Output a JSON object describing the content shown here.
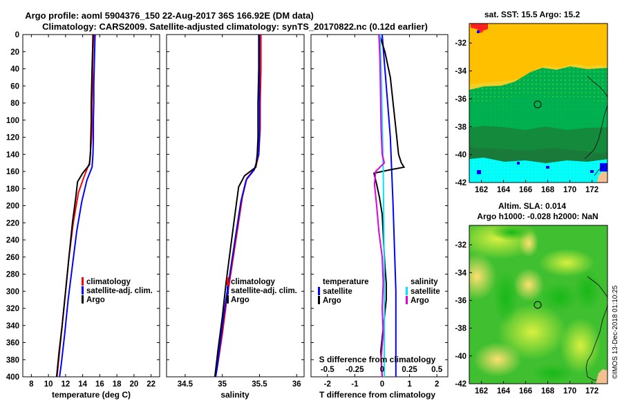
{
  "title": {
    "line1": "Argo profile: aoml 5904376_150 22-Aug-2017 36S 166.92E (DM data)",
    "line2": "Climatology: CARS2009. Satellite-adjusted climatology: synTS_20170822.nc (0.12d earlier)"
  },
  "colors": {
    "climatology": "#ff0000",
    "satellite": "#0000ff",
    "argo": "#000000",
    "salinity_satellite": "#00e5ff",
    "salinity_argo": "#e000e0"
  },
  "depth_axis": {
    "range": [
      0,
      400
    ],
    "ticks": [
      "0",
      "20",
      "40",
      "60",
      "80",
      "100",
      "120",
      "140",
      "160",
      "180",
      "200",
      "220",
      "240",
      "260",
      "280",
      "300",
      "320",
      "340",
      "360",
      "380",
      "400"
    ]
  },
  "chart_data": [
    {
      "type": "line",
      "id": "temperature",
      "xlabel": "temperature (deg C)",
      "ylabel": "",
      "xlim": [
        7,
        23
      ],
      "ylim": [
        400,
        0
      ],
      "x_ticks": [
        "8",
        "10",
        "12",
        "14",
        "16",
        "18",
        "20",
        "22"
      ],
      "x_tick_values": [
        8,
        10,
        12,
        14,
        16,
        18,
        20,
        22
      ],
      "legend": [
        "climatology",
        "satellite-adj. clim.",
        "Argo"
      ],
      "series": [
        {
          "name": "climatology",
          "color_key": "climatology",
          "points": [
            [
              15.3,
              0
            ],
            [
              15.2,
              20
            ],
            [
              15.15,
              40
            ],
            [
              15.15,
              60
            ],
            [
              15.1,
              80
            ],
            [
              15.1,
              100
            ],
            [
              15.05,
              120
            ],
            [
              14.8,
              150
            ],
            [
              14.2,
              165
            ],
            [
              13.5,
              185
            ],
            [
              12.9,
              220
            ],
            [
              12.4,
              260
            ],
            [
              12.0,
              300
            ],
            [
              11.6,
              340
            ],
            [
              11.3,
              370
            ],
            [
              11.0,
              400
            ]
          ]
        },
        {
          "name": "satellite-adj. clim.",
          "color_key": "satellite",
          "points": [
            [
              15.45,
              0
            ],
            [
              15.4,
              20
            ],
            [
              15.35,
              40
            ],
            [
              15.3,
              60
            ],
            [
              15.3,
              80
            ],
            [
              15.25,
              100
            ],
            [
              15.25,
              120
            ],
            [
              15.2,
              140
            ],
            [
              15.1,
              155
            ],
            [
              14.5,
              170
            ],
            [
              13.9,
              195
            ],
            [
              13.3,
              230
            ],
            [
              12.8,
              270
            ],
            [
              12.3,
              310
            ],
            [
              11.9,
              350
            ],
            [
              11.5,
              385
            ],
            [
              11.3,
              400
            ]
          ]
        },
        {
          "name": "Argo",
          "color_key": "argo",
          "points": [
            [
              15.2,
              0
            ],
            [
              15.15,
              20
            ],
            [
              15.1,
              40
            ],
            [
              15.05,
              60
            ],
            [
              15.0,
              80
            ],
            [
              15.0,
              100
            ],
            [
              14.95,
              120
            ],
            [
              14.9,
              140
            ],
            [
              14.8,
              152
            ],
            [
              14.0,
              162
            ],
            [
              13.4,
              172
            ],
            [
              13.2,
              190
            ],
            [
              12.8,
              220
            ],
            [
              12.4,
              260
            ],
            [
              12.0,
              300
            ],
            [
              11.6,
              340
            ],
            [
              11.25,
              370
            ],
            [
              10.95,
              400
            ]
          ]
        }
      ]
    },
    {
      "type": "line",
      "id": "salinity",
      "xlabel": "salinity",
      "xlim": [
        34.25,
        36.1
      ],
      "ylim": [
        400,
        0
      ],
      "x_ticks": [
        "34.5",
        "35",
        "35.5",
        "36"
      ],
      "x_tick_values": [
        34.5,
        35,
        35.5,
        36
      ],
      "legend": [
        "climatology",
        "satellite-adj. clim.",
        "Argo"
      ],
      "series": [
        {
          "name": "climatology",
          "color_key": "climatology",
          "points": [
            [
              35.52,
              0
            ],
            [
              35.52,
              40
            ],
            [
              35.51,
              80
            ],
            [
              35.51,
              110
            ],
            [
              35.49,
              140
            ],
            [
              35.45,
              155
            ],
            [
              35.33,
              168
            ],
            [
              35.27,
              190
            ],
            [
              35.2,
              230
            ],
            [
              35.13,
              270
            ],
            [
              35.06,
              310
            ],
            [
              35.0,
              350
            ],
            [
              34.94,
              385
            ],
            [
              34.91,
              400
            ]
          ]
        },
        {
          "name": "satellite-adj. clim.",
          "color_key": "satellite",
          "points": [
            [
              35.5,
              0
            ],
            [
              35.5,
              40
            ],
            [
              35.5,
              80
            ],
            [
              35.5,
              110
            ],
            [
              35.49,
              140
            ],
            [
              35.43,
              158
            ],
            [
              35.32,
              170
            ],
            [
              35.25,
              195
            ],
            [
              35.18,
              235
            ],
            [
              35.11,
              275
            ],
            [
              35.04,
              315
            ],
            [
              34.98,
              355
            ],
            [
              34.93,
              390
            ],
            [
              34.91,
              400
            ]
          ]
        },
        {
          "name": "Argo",
          "color_key": "argo",
          "points": [
            [
              35.49,
              0
            ],
            [
              35.49,
              40
            ],
            [
              35.48,
              80
            ],
            [
              35.48,
              120
            ],
            [
              35.47,
              140
            ],
            [
              35.45,
              155
            ],
            [
              35.3,
              165
            ],
            [
              35.22,
              178
            ],
            [
              35.17,
              210
            ],
            [
              35.11,
              250
            ],
            [
              35.05,
              290
            ],
            [
              35.0,
              330
            ],
            [
              34.94,
              370
            ],
            [
              34.9,
              400
            ]
          ]
        }
      ]
    },
    {
      "type": "line",
      "id": "difference",
      "xlabel": "T difference from climatology",
      "secondary_xlabel": "S difference from climatology",
      "xlim": [
        -2.6,
        2.4
      ],
      "ylim": [
        400,
        0
      ],
      "x_ticks": [
        "-2",
        "-1",
        "0",
        "1",
        "2"
      ],
      "x_tick_values": [
        -2,
        -1,
        0,
        1,
        2
      ],
      "s_ticks": [
        "-0.5",
        "-0.25",
        "0",
        "0.25",
        "0.5"
      ],
      "s_tick_values": [
        -0.5,
        -0.25,
        0,
        0.25,
        0.5
      ],
      "s_scale": 4,
      "legend_temperature": {
        "header": "temperature",
        "items": [
          "satellite",
          "Argo"
        ]
      },
      "legend_salinity": {
        "header": "salinity",
        "items": [
          "satellite",
          "Argo"
        ]
      },
      "series": [
        {
          "name": "T satellite",
          "color_key": "satellite",
          "points": [
            [
              0.0,
              0
            ],
            [
              0.1,
              40
            ],
            [
              0.2,
              80
            ],
            [
              0.3,
              120
            ],
            [
              0.35,
              160
            ],
            [
              0.4,
              200
            ],
            [
              0.45,
              250
            ],
            [
              0.5,
              300
            ],
            [
              0.5,
              350
            ],
            [
              0.5,
              400
            ]
          ]
        },
        {
          "name": "T Argo",
          "color_key": "argo",
          "points": [
            [
              -0.1,
              0
            ],
            [
              0.1,
              20
            ],
            [
              0.3,
              50
            ],
            [
              0.4,
              80
            ],
            [
              0.5,
              110
            ],
            [
              0.6,
              140
            ],
            [
              0.7,
              150
            ],
            [
              0.8,
              155
            ],
            [
              0.3,
              158
            ],
            [
              -0.3,
              162
            ],
            [
              -0.2,
              175
            ],
            [
              -0.1,
              190
            ],
            [
              0.0,
              210
            ],
            [
              0.05,
              240
            ],
            [
              0.1,
              270
            ],
            [
              0.15,
              290
            ],
            [
              0.15,
              310
            ],
            [
              0.05,
              340
            ],
            [
              -0.05,
              370
            ],
            [
              0.0,
              400
            ]
          ]
        },
        {
          "name": "S satellite",
          "color_key": "salinity_satellite",
          "s_points": [
            [
              -0.02,
              0
            ],
            [
              -0.01,
              40
            ],
            [
              0.0,
              100
            ],
            [
              0.01,
              160
            ],
            [
              0.015,
              220
            ],
            [
              0.02,
              280
            ],
            [
              0.02,
              340
            ],
            [
              0.02,
              400
            ]
          ]
        },
        {
          "name": "S Argo",
          "color_key": "salinity_argo",
          "s_points": [
            [
              -0.03,
              0
            ],
            [
              -0.02,
              30
            ],
            [
              -0.015,
              70
            ],
            [
              -0.01,
              110
            ],
            [
              0.0,
              140
            ],
            [
              0.02,
              150
            ],
            [
              -0.06,
              160
            ],
            [
              -0.07,
              175
            ],
            [
              -0.05,
              200
            ],
            [
              -0.03,
              230
            ],
            [
              0.0,
              260
            ],
            [
              0.01,
              290
            ],
            [
              0.0,
              320
            ],
            [
              0.01,
              350
            ],
            [
              -0.01,
              380
            ],
            [
              0.0,
              400
            ]
          ]
        }
      ]
    }
  ],
  "maps": [
    {
      "id": "sst",
      "title": "sat. SST: 15.5 Argo: 15.2",
      "x_ticks": [
        "162",
        "164",
        "166",
        "168",
        "170",
        "172"
      ],
      "y_ticks": [
        "-32",
        "-34",
        "-36",
        "-38",
        "-40",
        "-42"
      ]
    },
    {
      "id": "sla",
      "title_line1": "Altim. SLA: 0.014",
      "title_line2": "Argo h1000: -0.028 h2000: NaN",
      "x_ticks": [
        "162",
        "164",
        "166",
        "168",
        "170",
        "172"
      ],
      "y_ticks": [
        "-32",
        "-34",
        "-36",
        "-38",
        "-40",
        "-42"
      ]
    }
  ],
  "credit": "©IMOS 13-Dec-2018 01:10:25"
}
